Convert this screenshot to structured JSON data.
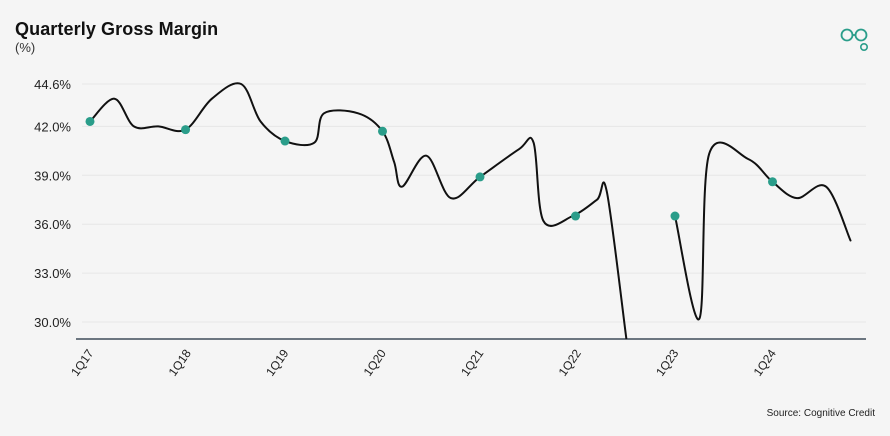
{
  "page": {
    "title": "Quarterly Gross Margin",
    "subtitle": "(%)",
    "source": "Source: Cognitive Credit",
    "logo_icon": "linked-circles-icon"
  },
  "colors": {
    "background": "#f5f5f5",
    "line": "#111111",
    "marker": "#2a9d8a",
    "grid": "#e6e6e6",
    "axis": "#1a2a3a"
  },
  "chart_data": {
    "type": "line",
    "title": "Quarterly Gross Margin",
    "ylabel": "(%)",
    "xlabel": "",
    "ylim": [
      29.0,
      45.5
    ],
    "y_ticks": [
      30.0,
      33.0,
      36.0,
      39.0,
      42.0,
      44.6
    ],
    "y_tick_labels": [
      "30.0%",
      "33.0%",
      "36.0%",
      "39.0%",
      "42.0%",
      "44.6%"
    ],
    "x_tick_labels": [
      "1Q17",
      "1Q18",
      "1Q19",
      "1Q20",
      "1Q21",
      "1Q22",
      "1Q23",
      "1Q24"
    ],
    "grid": true,
    "series": [
      {
        "values": [
          [
            0.0,
            42.3
          ],
          [
            0.25,
            43.7
          ],
          [
            0.45,
            42.0
          ],
          [
            0.7,
            42.0
          ],
          [
            0.98,
            41.8
          ],
          [
            1.25,
            43.7
          ],
          [
            1.55,
            44.6
          ],
          [
            1.75,
            42.3
          ],
          [
            2.0,
            41.1
          ],
          [
            2.3,
            41.0
          ],
          [
            2.4,
            42.8
          ],
          [
            2.75,
            42.8
          ],
          [
            3.0,
            41.7
          ],
          [
            3.12,
            39.8
          ],
          [
            3.2,
            38.3
          ],
          [
            3.45,
            40.2
          ],
          [
            3.7,
            37.6
          ],
          [
            4.0,
            38.9
          ],
          [
            4.4,
            40.6
          ],
          [
            4.55,
            41.0
          ],
          [
            4.65,
            36.2
          ],
          [
            4.95,
            36.5
          ],
          [
            5.2,
            37.5
          ],
          [
            5.3,
            38.0
          ],
          [
            5.5,
            29.0
          ]
        ]
      },
      {
        "values": [
          [
            6.0,
            36.5
          ],
          [
            6.25,
            30.2
          ],
          [
            6.35,
            40.3
          ],
          [
            6.75,
            40.0
          ],
          [
            7.0,
            38.6
          ],
          [
            7.25,
            37.6
          ],
          [
            7.55,
            38.3
          ],
          [
            7.8,
            35.0
          ]
        ]
      }
    ],
    "markers": [
      [
        0.0,
        42.3
      ],
      [
        0.98,
        41.8
      ],
      [
        2.0,
        41.1
      ],
      [
        3.0,
        41.7
      ],
      [
        4.0,
        38.9
      ],
      [
        4.98,
        36.5
      ],
      [
        6.0,
        36.5
      ],
      [
        7.0,
        38.6
      ]
    ]
  }
}
